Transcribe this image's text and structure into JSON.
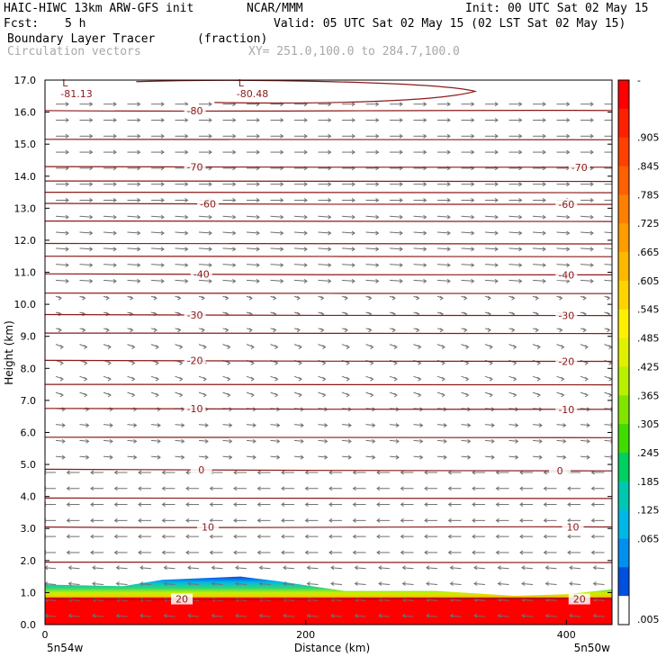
{
  "header": {
    "model": "HAIC-HIWC 13km ARW-GFS init",
    "org": "NCAR/MMM",
    "init": "Init: 00 UTC Sat 02 May 15",
    "fcst_label": "Fcst:",
    "fcst_value": "5 h",
    "valid": "Valid: 05 UTC Sat 02 May 15 (02 LST Sat 02 May 15)",
    "field": "Boundary Layer Tracer",
    "field_units": "(fraction)",
    "vectors": "Circulation vectors",
    "xsec": "XY= 251.0,100.0 to 284.7,100.0"
  },
  "colors": {
    "contour": "#8b1a1a",
    "vector": "#707070",
    "text_gray": "#a8a8a8"
  },
  "chart_data": {
    "type": "heatmap",
    "xlabel": "Distance (km)",
    "ylabel": "Height (km)",
    "xlim": [
      0,
      435
    ],
    "ylim": [
      0,
      17
    ],
    "x_ticks": [
      0,
      200,
      400
    ],
    "y_ticks": [
      "0.0",
      "1.0",
      "2.0",
      "3.0",
      "4.0",
      "5.0",
      "6.0",
      "7.0",
      "8.0",
      "9.0",
      "10.0",
      "11.0",
      "12.0",
      "13.0",
      "14.0",
      "15.0",
      "16.0",
      "17.0"
    ],
    "x_endpoints": {
      "left": "5n54w",
      "right": "5n50w"
    },
    "colorbar": {
      "labels": [
        "-",
        ".905",
        ".845",
        ".785",
        ".725",
        ".665",
        ".605",
        ".545",
        ".485",
        ".425",
        ".365",
        ".305",
        ".245",
        ".185",
        ".125",
        ".065",
        ".005"
      ],
      "colors": [
        "#ff0000",
        "#ff2000",
        "#ff4000",
        "#ff6000",
        "#ff8000",
        "#ff9c00",
        "#ffb800",
        "#ffd400",
        "#fff000",
        "#e0f000",
        "#b8f000",
        "#80e600",
        "#40dc00",
        "#00d060",
        "#00c8b0",
        "#00b8e8",
        "#0090f0",
        "#0050e0",
        "#ffffff"
      ]
    },
    "tracer_top_km": [
      {
        "x": 0,
        "z": 1.25
      },
      {
        "x": 60,
        "z": 1.2
      },
      {
        "x": 90,
        "z": 1.4
      },
      {
        "x": 150,
        "z": 1.5
      },
      {
        "x": 180,
        "z": 1.35
      },
      {
        "x": 230,
        "z": 1.05
      },
      {
        "x": 300,
        "z": 1.05
      },
      {
        "x": 360,
        "z": 0.9
      },
      {
        "x": 400,
        "z": 0.95
      },
      {
        "x": 435,
        "z": 1.1
      }
    ],
    "temperature_contours": [
      {
        "label": "20",
        "z_left": 0.8,
        "z_right": 0.8,
        "label_x": [
          105,
          410
        ]
      },
      {
        "label": "10",
        "z_left": 3.05,
        "z_right": 3.05,
        "label_x": [
          125,
          405
        ]
      },
      {
        "label": "0",
        "z_left": 4.85,
        "z_right": 4.8,
        "label_x": [
          120,
          395
        ]
      },
      {
        "label": "-10",
        "z_left": 6.75,
        "z_right": 6.72,
        "label_x": [
          115,
          400
        ]
      },
      {
        "label": "-20",
        "z_left": 8.25,
        "z_right": 8.22,
        "label_x": [
          115,
          400
        ]
      },
      {
        "label": "-30",
        "z_left": 9.68,
        "z_right": 9.65,
        "label_x": [
          115,
          400
        ]
      },
      {
        "label": "-40",
        "z_left": 10.95,
        "z_right": 10.92,
        "label_x": [
          120,
          400
        ]
      },
      {
        "label": "-60",
        "z_left": 13.15,
        "z_right": 13.12,
        "label_x": [
          125,
          400
        ]
      },
      {
        "label": "-70",
        "z_left": 14.3,
        "z_right": 14.28,
        "label_x": [
          115,
          410
        ]
      },
      {
        "label": "-80",
        "z_left": 16.05,
        "z_right": 16.05,
        "label_x": [
          115
        ]
      }
    ],
    "extra_contours_km": [
      1.95,
      3.95,
      5.85,
      7.5,
      9.1,
      10.35,
      11.5,
      11.9,
      12.6,
      13.5,
      13.85,
      15.15
    ],
    "minima": [
      {
        "label": "L",
        "value": "-81.13",
        "x": 5,
        "z": 16.8
      },
      {
        "label": "L",
        "value": "-80.48",
        "x": 140,
        "z": 16.8
      }
    ]
  }
}
